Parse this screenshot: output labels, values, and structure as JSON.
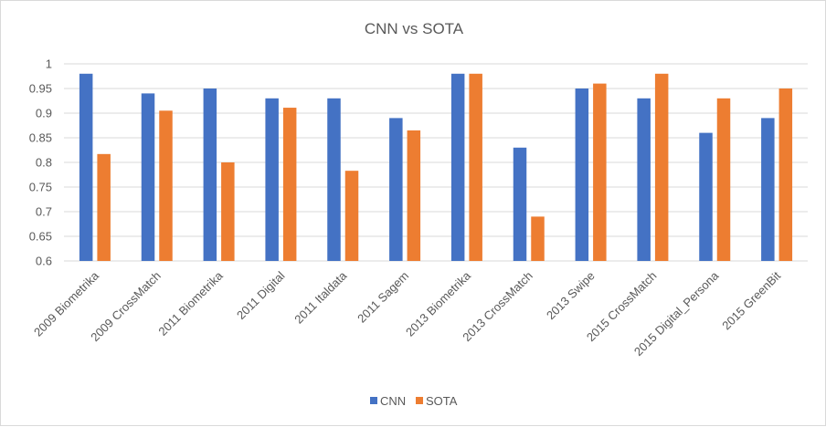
{
  "chart_data": {
    "type": "bar",
    "title": "CNN vs SOTA",
    "xlabel": "",
    "ylabel": "",
    "ylim": [
      0.6,
      1.0
    ],
    "yticks": [
      "0.6",
      "0.65",
      "0.7",
      "0.75",
      "0.8",
      "0.85",
      "0.9",
      "0.95",
      "1"
    ],
    "categories": [
      "2009 Biometrika",
      "2009 CrossMatch",
      "2011 Biometrika",
      "2011 Digital",
      "2011 Italdata",
      "2011 Sagem",
      "2013 Biometrika",
      "2013 CrossMatch",
      "2013 Swipe",
      "2015 CrossMatch",
      "2015 Digital_Persona",
      "2015 GreenBit"
    ],
    "series": [
      {
        "name": "CNN",
        "color": "#4472c4",
        "values": [
          0.98,
          0.94,
          0.95,
          0.93,
          0.93,
          0.89,
          0.98,
          0.83,
          0.95,
          0.93,
          0.86,
          0.89
        ]
      },
      {
        "name": "SOTA",
        "color": "#ed7d31",
        "values": [
          0.817,
          0.905,
          0.8,
          0.911,
          0.783,
          0.865,
          0.98,
          0.69,
          0.96,
          0.98,
          0.93,
          0.95
        ]
      }
    ],
    "grid": true,
    "legend_position": "bottom"
  }
}
